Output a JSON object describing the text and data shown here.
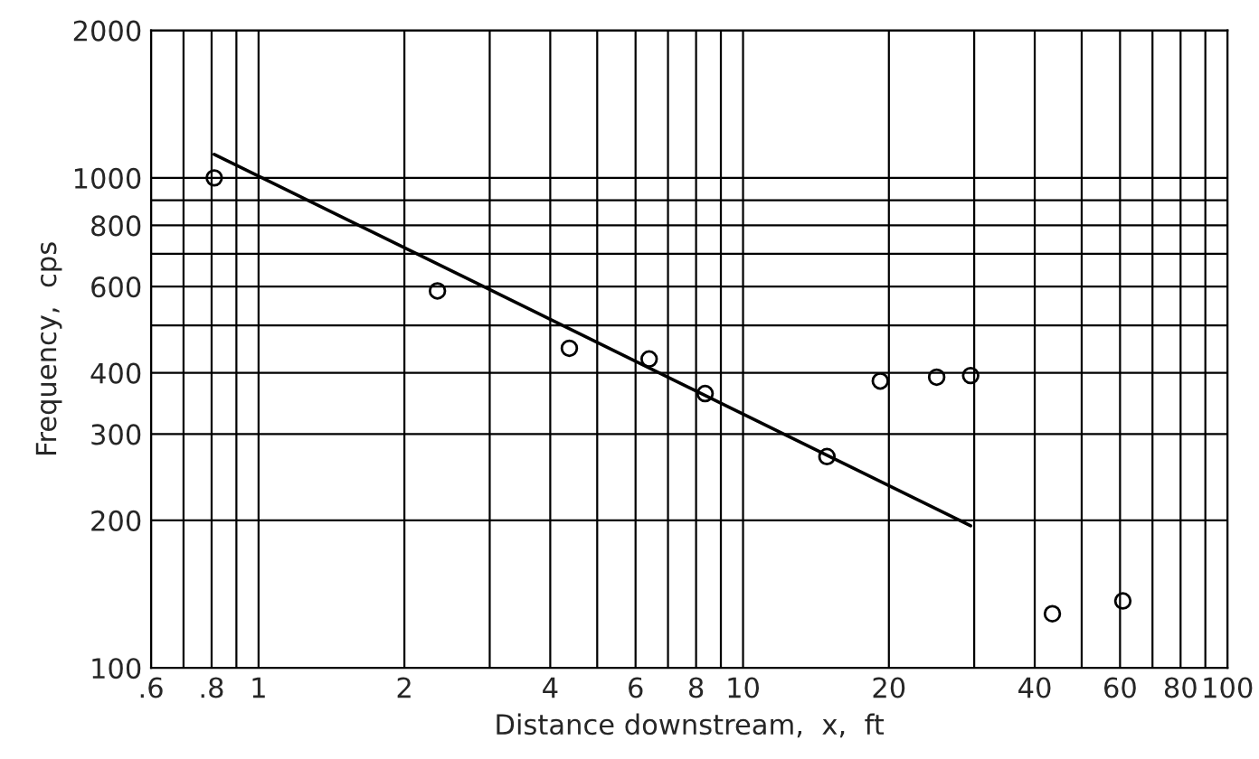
{
  "chart_data": {
    "type": "scatter",
    "xlabel": "Distance downstream,  x,  ft",
    "ylabel": "Frequency,  cps",
    "log": "xy",
    "grid": true,
    "marker": "circle",
    "xlim": [
      0.6,
      100
    ],
    "ylim": [
      100,
      2000
    ],
    "xticks": [
      {
        "value": 0.6,
        "label": ".6"
      },
      {
        "value": 0.7,
        "label": null
      },
      {
        "value": 0.8,
        "label": ".8"
      },
      {
        "value": 0.9,
        "label": null
      },
      1,
      2,
      {
        "value": 3,
        "label": null
      },
      4,
      {
        "value": 5,
        "label": null
      },
      6,
      {
        "value": 7,
        "label": null
      },
      8,
      {
        "value": 9,
        "label": null
      },
      10,
      20,
      {
        "value": 30,
        "label": null
      },
      40,
      {
        "value": 50,
        "label": null
      },
      60,
      {
        "value": 70,
        "label": null
      },
      80,
      {
        "value": 90,
        "label": null
      },
      100
    ],
    "yticks": [
      100,
      200,
      300,
      400,
      {
        "value": 500,
        "label": null
      },
      600,
      {
        "value": 700,
        "label": null
      },
      800,
      {
        "value": 900,
        "label": null
      },
      1000,
      2000
    ],
    "series": [
      {
        "color": "#000000",
        "x": [
          0.81,
          2.34,
          4.38,
          6.4,
          8.35,
          14.9,
          19.2,
          25.1,
          29.5,
          43.5,
          60.8
        ],
        "values": [
          1000,
          588,
          449,
          427,
          363,
          270,
          385,
          392,
          395,
          129,
          137
        ]
      },
      {
        "type": "line",
        "color": "#000000",
        "marker": "none",
        "x": [
          0.81,
          29.5
        ],
        "values": [
          1117,
          195
        ]
      }
    ]
  }
}
